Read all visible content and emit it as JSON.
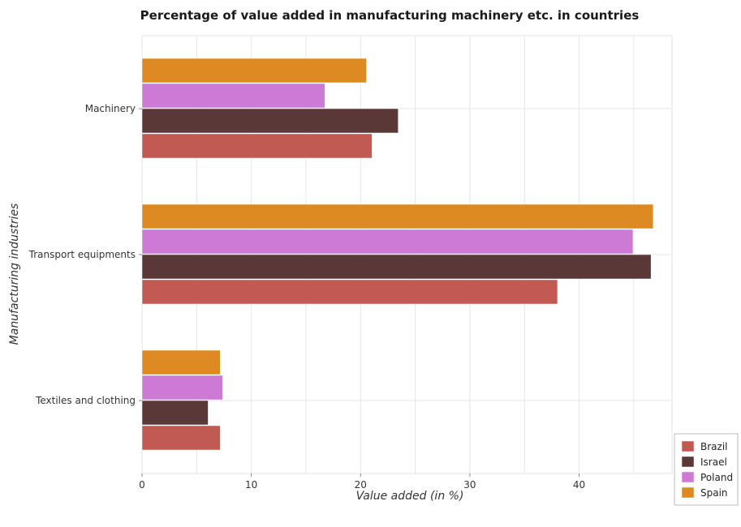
{
  "chart_data": {
    "type": "bar",
    "orientation": "horizontal",
    "title": "Percentage of value added in manufacturing machinery etc. in countries",
    "xlabel": "Value added (in %)",
    "ylabel": "Manufacturing industries",
    "categories": [
      "Machinery",
      "Transport equipments",
      "Textiles and clothing"
    ],
    "series": [
      {
        "name": "Brazil",
        "color": "#c15a53",
        "values": [
          21.05,
          38.02,
          7.15
        ]
      },
      {
        "name": "Israel",
        "color": "#5b3838",
        "values": [
          23.44,
          46.58,
          6.05
        ]
      },
      {
        "name": "Poland",
        "color": "#cc7ad6",
        "values": [
          16.74,
          44.93,
          7.39
        ]
      },
      {
        "name": "Spain",
        "color": "#dc8a21",
        "values": [
          20.54,
          46.78,
          7.15
        ]
      }
    ],
    "x_ticks": [
      0,
      10,
      20,
      30,
      40
    ],
    "xlim": [
      0,
      48.5
    ],
    "grid": true,
    "legend_position": "bottom-right"
  }
}
